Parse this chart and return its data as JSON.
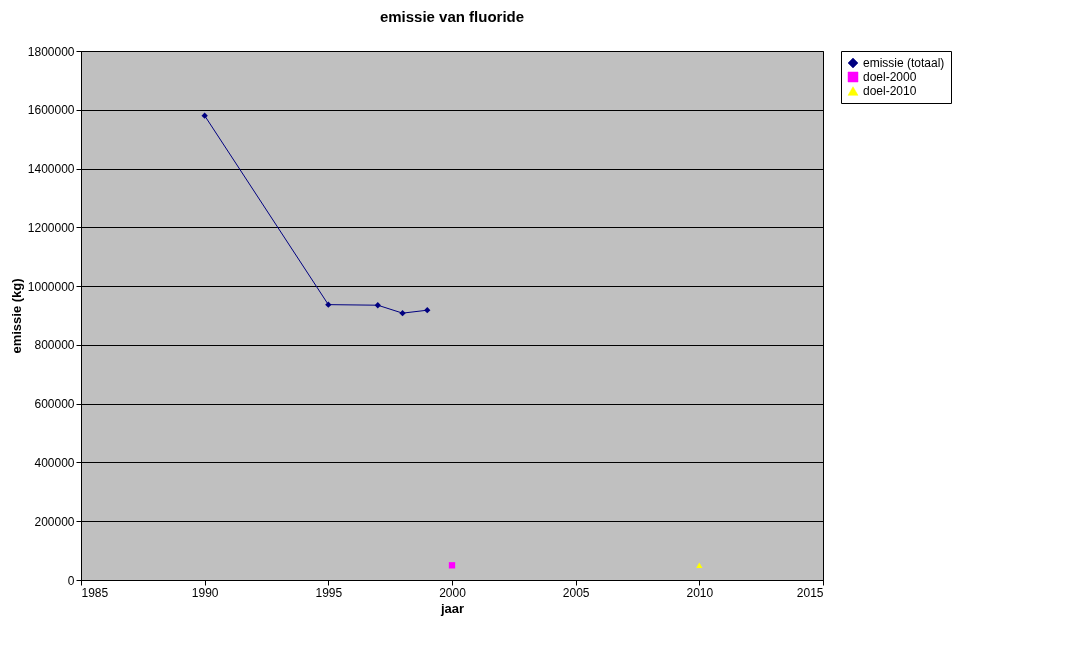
{
  "chart_data": {
    "type": "line",
    "title": "emissie van fluoride",
    "xlabel": "jaar",
    "ylabel": "emissie (kg)",
    "xlim": [
      1985,
      2015
    ],
    "xticks": [
      1985,
      1990,
      1995,
      2000,
      2005,
      2010,
      2015
    ],
    "ylim": [
      0,
      1800000
    ],
    "yticks": [
      0,
      200000,
      400000,
      600000,
      800000,
      1000000,
      1200000,
      1400000,
      1600000,
      1800000
    ],
    "grid": "y",
    "legend": "right",
    "series": [
      {
        "name": "emissie (totaal)",
        "marker": "diamond",
        "color": "#000080",
        "x": [
          1990,
          1995,
          1997,
          1998,
          1999
        ],
        "values": [
          1580000,
          937000,
          935000,
          908000,
          918000
        ]
      },
      {
        "name": "doel-2000",
        "type": "scatter",
        "marker": "square",
        "color": "#ff00ff",
        "x": [
          2000
        ],
        "values": [
          50000
        ]
      },
      {
        "name": "doel-2010",
        "type": "scatter",
        "marker": "triangle",
        "color": "#ffff00",
        "x": [
          2010
        ],
        "values": [
          50000
        ]
      }
    ]
  }
}
